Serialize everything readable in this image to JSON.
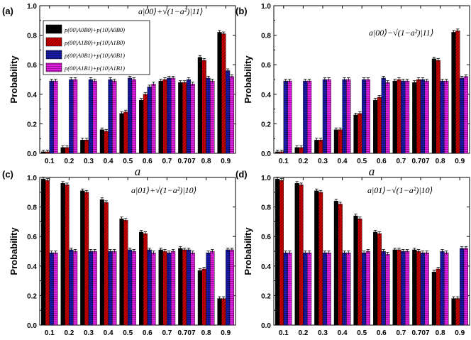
{
  "colors": {
    "series": [
      "#000000",
      "#cc0000",
      "#1a1aa8",
      "#d81bd8"
    ],
    "axis": "#000000",
    "error_bar": "#000000"
  },
  "legend": {
    "items": [
      "p(00|A0B0)+p(10|A0B0)",
      "p(00|A1B0)+p(10|A1B0)",
      "p(00|A0B1)+p(10|A0B1)",
      "p(00|A1B1)+p(10|A1B1)"
    ]
  },
  "chart_data": [
    {
      "panel_label": "(a)",
      "type": "bar",
      "state": "a|00⟩+√(1−a²)|11⟩",
      "xlabel": "a",
      "ylabel": "Probability",
      "ylim": [
        0.0,
        1.0
      ],
      "yticks": [
        "0.0",
        "0.2",
        "0.4",
        "0.6",
        "0.8",
        "1.0"
      ],
      "categories": [
        "0.1",
        "0.2",
        "0.3",
        "0.4",
        "0.5",
        "0.6",
        "0.7",
        "0.707",
        "0.8",
        "0.9"
      ],
      "legend_position": "top-left",
      "series": [
        {
          "values": [
            0.01,
            0.04,
            0.09,
            0.16,
            0.27,
            0.36,
            0.49,
            0.48,
            0.65,
            0.82
          ]
        },
        {
          "values": [
            0.01,
            0.04,
            0.09,
            0.15,
            0.28,
            0.4,
            0.5,
            0.48,
            0.63,
            0.81
          ]
        },
        {
          "values": [
            0.49,
            0.5,
            0.5,
            0.5,
            0.51,
            0.45,
            0.51,
            0.5,
            0.51,
            0.56
          ]
        },
        {
          "values": [
            0.49,
            0.5,
            0.49,
            0.49,
            0.5,
            0.47,
            0.51,
            0.47,
            0.49,
            0.52
          ]
        }
      ]
    },
    {
      "panel_label": "(b)",
      "type": "bar",
      "state": "a|00⟩−√(1−a²)|11⟩",
      "xlabel": "a",
      "ylabel": "Probability",
      "ylim": [
        0.0,
        1.0
      ],
      "yticks": [
        "0.0",
        "0.2",
        "0.4",
        "0.6",
        "0.8",
        "1.0"
      ],
      "categories": [
        "0.1",
        "0.2",
        "0.3",
        "0.4",
        "0.5",
        "0.6",
        "0.7",
        "0.707",
        "0.8",
        "0.9"
      ],
      "series": [
        {
          "values": [
            0.01,
            0.04,
            0.09,
            0.16,
            0.26,
            0.36,
            0.49,
            0.48,
            0.64,
            0.82
          ]
        },
        {
          "values": [
            0.01,
            0.04,
            0.09,
            0.16,
            0.27,
            0.38,
            0.5,
            0.5,
            0.63,
            0.83
          ]
        },
        {
          "values": [
            0.49,
            0.49,
            0.5,
            0.5,
            0.5,
            0.51,
            0.49,
            0.5,
            0.49,
            0.51
          ]
        },
        {
          "values": [
            0.49,
            0.49,
            0.5,
            0.5,
            0.5,
            0.48,
            0.49,
            0.49,
            0.49,
            0.52
          ]
        }
      ]
    },
    {
      "panel_label": "(c)",
      "type": "bar",
      "state": "a|01⟩+√(1−a²)|10⟩",
      "xlabel": "a",
      "ylabel": "Probability",
      "ylim": [
        0.0,
        1.0
      ],
      "yticks": [
        "0.0",
        "0.2",
        "0.4",
        "0.6",
        "0.8",
        "1.0"
      ],
      "categories": [
        "0.1",
        "0.2",
        "0.3",
        "0.4",
        "0.5",
        "0.6",
        "0.7",
        "0.707",
        "0.8",
        "0.9"
      ],
      "series": [
        {
          "values": [
            0.99,
            0.96,
            0.91,
            0.85,
            0.72,
            0.63,
            0.51,
            0.52,
            0.37,
            0.18
          ]
        },
        {
          "values": [
            0.98,
            0.95,
            0.9,
            0.83,
            0.71,
            0.62,
            0.5,
            0.51,
            0.38,
            0.18
          ]
        },
        {
          "values": [
            0.49,
            0.51,
            0.5,
            0.5,
            0.51,
            0.51,
            0.49,
            0.51,
            0.49,
            0.51
          ]
        },
        {
          "values": [
            0.49,
            0.5,
            0.5,
            0.5,
            0.5,
            0.49,
            0.5,
            0.49,
            0.5,
            0.51
          ]
        }
      ]
    },
    {
      "panel_label": "(d)",
      "type": "bar",
      "state": "a|01⟩−√(1−a²)|10⟩",
      "xlabel": "a",
      "ylabel": "Probability",
      "ylim": [
        0.0,
        1.0
      ],
      "yticks": [
        "0.0",
        "0.2",
        "0.4",
        "0.6",
        "0.8",
        "1.0"
      ],
      "categories": [
        "0.1",
        "0.2",
        "0.3",
        "0.4",
        "0.5",
        "0.6",
        "0.7",
        "0.707",
        "0.8",
        "0.9"
      ],
      "series": [
        {
          "values": [
            0.99,
            0.96,
            0.91,
            0.84,
            0.74,
            0.63,
            0.51,
            0.51,
            0.36,
            0.18
          ]
        },
        {
          "values": [
            0.98,
            0.95,
            0.9,
            0.82,
            0.72,
            0.62,
            0.51,
            0.5,
            0.38,
            0.18
          ]
        },
        {
          "values": [
            0.49,
            0.49,
            0.49,
            0.49,
            0.49,
            0.5,
            0.5,
            0.49,
            0.5,
            0.52
          ]
        },
        {
          "values": [
            0.49,
            0.49,
            0.49,
            0.49,
            0.5,
            0.48,
            0.5,
            0.49,
            0.49,
            0.52
          ]
        }
      ]
    }
  ]
}
